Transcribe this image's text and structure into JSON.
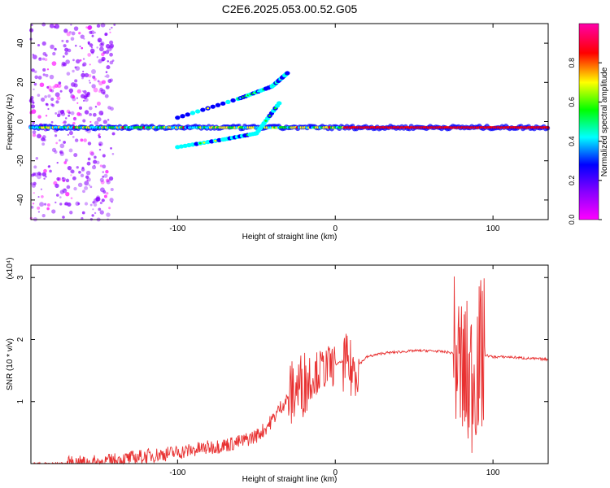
{
  "page": {
    "title": "C2E6.2025.053.00.52.G05"
  },
  "chart_data": [
    {
      "type": "heatmap",
      "xlabel": "Height of straight line (km)",
      "ylabel": "Frequency (Hz)",
      "xlim": [
        -193,
        135
      ],
      "ylim": [
        -50,
        50
      ],
      "x_ticks": [
        -100,
        0,
        100
      ],
      "y_ticks": [
        -40,
        -20,
        0,
        20,
        40
      ],
      "colorbar": {
        "label": "Normalized spectral amplitude",
        "range": [
          0,
          1
        ],
        "ticks": [
          "0.0",
          "0.2",
          "0.4",
          "0.6",
          "0.8"
        ],
        "colormap": [
          "#ff00ff",
          "#8800ff",
          "#0000ff",
          "#00ffff",
          "#00ff00",
          "#ffff00",
          "#ff0000",
          "#ff00aa"
        ]
      },
      "features": {
        "main_trace_freq_hz": -3,
        "main_trace_x_range": [
          -193,
          135
        ],
        "upper_branch": [
          [
            -100,
            2
          ],
          [
            -60,
            12
          ],
          [
            -40,
            18
          ],
          [
            -30,
            25
          ]
        ],
        "lower_branch": [
          [
            -100,
            -13
          ],
          [
            -70,
            -9
          ],
          [
            -50,
            -6
          ],
          [
            -35,
            10
          ]
        ],
        "noise_region_x_range": [
          -193,
          -140
        ]
      }
    },
    {
      "type": "line",
      "xlabel": "Height of straight line (km)",
      "ylabel": "SNR (10 * v/v)",
      "y_scale_note": "(x10⁴)",
      "xlim": [
        -193,
        135
      ],
      "ylim": [
        0,
        3.2
      ],
      "x_ticks": [
        -100,
        0,
        100
      ],
      "y_ticks": [
        1,
        2,
        3
      ],
      "grid": false,
      "series_color": "#e83030",
      "series": [
        {
          "x": [
            -193,
            -170,
            -150,
            -140,
            -120,
            -100,
            -90,
            -80,
            -70,
            -60,
            -50,
            -45,
            -40,
            -35,
            -30,
            -25,
            -20,
            -15,
            -10,
            -5,
            0,
            5,
            10,
            15,
            20,
            30,
            40,
            50,
            60,
            70,
            75,
            80,
            85,
            90,
            95,
            100,
            110,
            120,
            135
          ],
          "values": [
            0.0,
            0.0,
            0.02,
            0.05,
            0.12,
            0.18,
            0.22,
            0.26,
            0.3,
            0.35,
            0.45,
            0.55,
            0.7,
            0.9,
            1.05,
            1.2,
            1.3,
            1.4,
            1.5,
            1.55,
            1.6,
            1.65,
            1.5,
            1.6,
            1.72,
            1.78,
            1.8,
            1.82,
            1.82,
            1.8,
            1.78,
            1.5,
            1.3,
            1.65,
            1.75,
            1.72,
            1.72,
            1.7,
            1.68
          ]
        }
      ],
      "noise_segments": [
        {
          "x_range": [
            -170,
            -25
          ],
          "amplitude": 0.12
        },
        {
          "x_range": [
            -30,
            -15
          ],
          "amplitude": 0.55
        },
        {
          "x_range": [
            -15,
            0
          ],
          "amplitude": 0.35
        },
        {
          "x_range": [
            5,
            15
          ],
          "amplitude": 0.5
        },
        {
          "x_range": [
            75,
            95
          ],
          "amplitude": 1.3
        }
      ]
    }
  ]
}
